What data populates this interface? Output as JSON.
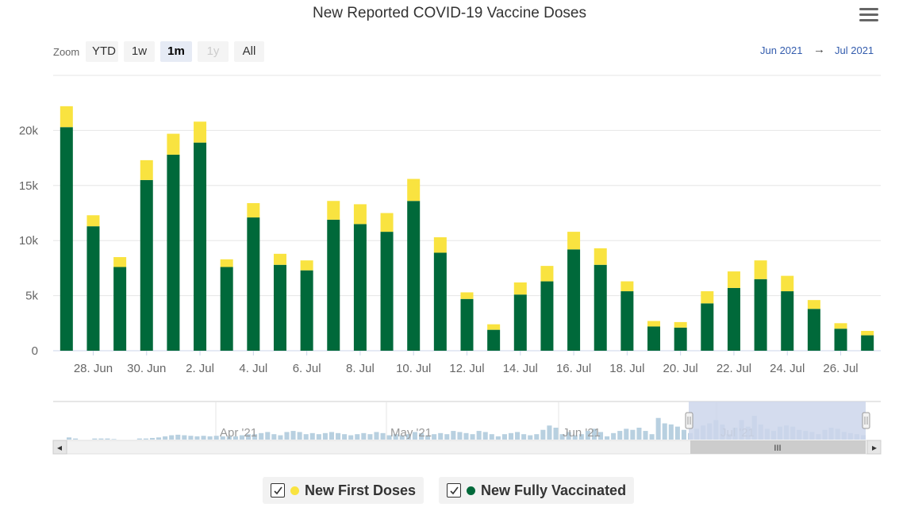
{
  "title": "New Reported COVID-19 Vaccine Doses",
  "menu_icon": "hamburger-menu-icon",
  "zoom": {
    "label": "Zoom",
    "buttons": [
      {
        "label": "YTD",
        "state": "normal"
      },
      {
        "label": "1w",
        "state": "normal"
      },
      {
        "label": "1m",
        "state": "active"
      },
      {
        "label": "1y",
        "state": "disabled"
      },
      {
        "label": "All",
        "state": "normal"
      }
    ]
  },
  "range": {
    "from": "Jun 2021",
    "arrow": "→",
    "to": "Jul 2021"
  },
  "colors": {
    "first_doses": "#f9e340",
    "fully_vaccinated": "#00693a",
    "navigator_bar": "#b8d0e0",
    "navigator_mask": "#ccd6eb"
  },
  "chart_data": {
    "type": "bar",
    "stacked": true,
    "title": "New Reported COVID-19 Vaccine Doses",
    "categories": [
      "27 Jun",
      "28 Jun",
      "29 Jun",
      "30 Jun",
      "1 Jul",
      "2 Jul",
      "3 Jul",
      "4 Jul",
      "5 Jul",
      "6 Jul",
      "7 Jul",
      "8 Jul",
      "9 Jul",
      "10 Jul",
      "11 Jul",
      "12 Jul",
      "13 Jul",
      "14 Jul",
      "15 Jul",
      "16 Jul",
      "17 Jul",
      "18 Jul",
      "19 Jul",
      "20 Jul",
      "21 Jul",
      "22 Jul",
      "23 Jul",
      "24 Jul",
      "25 Jul",
      "26 Jul",
      "27 Jul"
    ],
    "series": [
      {
        "name": "New Fully Vaccinated",
        "values": [
          20300,
          11300,
          7600,
          15500,
          17800,
          18900,
          7600,
          12100,
          7800,
          7300,
          11900,
          11500,
          10800,
          13600,
          8900,
          4700,
          1900,
          5100,
          6300,
          9200,
          7800,
          5400,
          2200,
          2100,
          4300,
          5700,
          6500,
          5400,
          3800,
          2000,
          1400
        ]
      },
      {
        "name": "New First Doses",
        "values": [
          1900,
          1000,
          900,
          1800,
          1900,
          1900,
          700,
          1300,
          1000,
          900,
          1700,
          1800,
          1700,
          2000,
          1400,
          600,
          500,
          1100,
          1400,
          1600,
          1500,
          900,
          500,
          500,
          1100,
          1500,
          1700,
          1400,
          800,
          500,
          400
        ]
      }
    ],
    "x_tick_labels": [
      "28. Jun",
      "30. Jun",
      "2. Jul",
      "4. Jul",
      "6. Jul",
      "8. Jul",
      "10. Jul",
      "12. Jul",
      "14. Jul",
      "16. Jul",
      "18. Jul",
      "20. Jul",
      "22. Jul",
      "24. Jul",
      "26. Jul"
    ],
    "y_tick_labels": [
      "0",
      "5k",
      "10k",
      "15k",
      "20k"
    ],
    "y_ticks": [
      0,
      5000,
      10000,
      15000,
      20000
    ],
    "ylim": [
      0,
      25000
    ],
    "xlabel": "",
    "ylabel": "",
    "grid": true,
    "legend": "bottom-center"
  },
  "navigator": {
    "labels": [
      "Apr '21",
      "May '21",
      "Jun '21",
      "Jul '21"
    ],
    "values": [
      200,
      100,
      0,
      0,
      100,
      100,
      100,
      50,
      0,
      0,
      0,
      100,
      100,
      150,
      200,
      300,
      400,
      450,
      400,
      350,
      300,
      350,
      300,
      350,
      300,
      300,
      300,
      400,
      500,
      500,
      600,
      700,
      500,
      400,
      700,
      800,
      700,
      500,
      600,
      500,
      600,
      700,
      600,
      500,
      400,
      500,
      600,
      500,
      700,
      600,
      400,
      500,
      400,
      500,
      700,
      600,
      400,
      500,
      600,
      500,
      800,
      700,
      600,
      500,
      800,
      700,
      500,
      300,
      500,
      600,
      700,
      500,
      400,
      500,
      900,
      1300,
      1100,
      500,
      700,
      400,
      500,
      800,
      1000,
      700,
      300,
      600,
      800,
      1000,
      900,
      1100,
      800,
      500,
      2000,
      1500,
      1400,
      1200,
      900,
      600,
      1000,
      1300,
      1500,
      1800,
      1400,
      500,
      1100,
      1800,
      1200,
      2200,
      1400,
      1000,
      800,
      1200,
      1300,
      1200,
      900,
      800,
      700,
      500,
      900,
      1100,
      1000,
      700,
      600,
      500,
      400
    ],
    "max": 2200,
    "left_arrow": "◂",
    "right_arrow": "▸",
    "scroll_grip": "grip-icon"
  },
  "legend": [
    {
      "label": "New First Doses",
      "checked": true
    },
    {
      "label": "New Fully Vaccinated",
      "checked": true
    }
  ]
}
